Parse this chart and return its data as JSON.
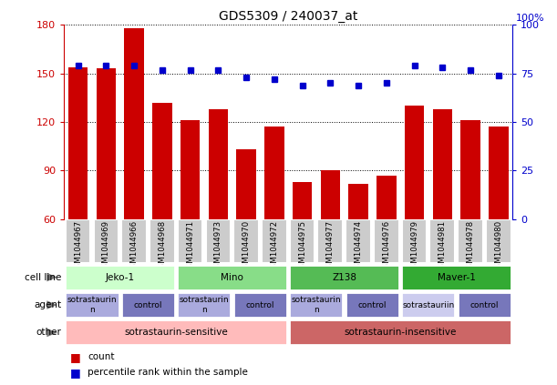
{
  "title": "GDS5309 / 240037_at",
  "samples": [
    "GSM1044967",
    "GSM1044969",
    "GSM1044966",
    "GSM1044968",
    "GSM1044971",
    "GSM1044973",
    "GSM1044970",
    "GSM1044972",
    "GSM1044975",
    "GSM1044977",
    "GSM1044974",
    "GSM1044976",
    "GSM1044979",
    "GSM1044981",
    "GSM1044978",
    "GSM1044980"
  ],
  "count_values": [
    154,
    153,
    178,
    132,
    121,
    128,
    103,
    117,
    83,
    90,
    82,
    87,
    130,
    128,
    121,
    117
  ],
  "percentile_values": [
    79,
    79,
    79,
    77,
    77,
    77,
    73,
    72,
    69,
    70,
    69,
    70,
    79,
    78,
    77,
    74
  ],
  "ylim_left": [
    60,
    180
  ],
  "ylim_right": [
    0,
    100
  ],
  "yticks_left": [
    60,
    90,
    120,
    150,
    180
  ],
  "yticks_right": [
    0,
    25,
    50,
    75,
    100
  ],
  "bar_color": "#cc0000",
  "dot_color": "#0000cc",
  "cell_line_groups": [
    {
      "label": "Jeko-1",
      "start": 0,
      "end": 3,
      "color": "#ccffcc"
    },
    {
      "label": "Mino",
      "start": 4,
      "end": 7,
      "color": "#88dd88"
    },
    {
      "label": "Z138",
      "start": 8,
      "end": 11,
      "color": "#55bb55"
    },
    {
      "label": "Maver-1",
      "start": 12,
      "end": 15,
      "color": "#33aa33"
    }
  ],
  "agent_groups": [
    {
      "label": "sotrastaurin\nn",
      "start": 0,
      "end": 1,
      "color": "#aaaadd"
    },
    {
      "label": "control",
      "start": 2,
      "end": 3,
      "color": "#7777bb"
    },
    {
      "label": "sotrastaurin\nn",
      "start": 4,
      "end": 5,
      "color": "#aaaadd"
    },
    {
      "label": "control",
      "start": 6,
      "end": 7,
      "color": "#7777bb"
    },
    {
      "label": "sotrastaurin\nn",
      "start": 8,
      "end": 9,
      "color": "#aaaadd"
    },
    {
      "label": "control",
      "start": 10,
      "end": 11,
      "color": "#7777bb"
    },
    {
      "label": "sotrastauriin",
      "start": 12,
      "end": 13,
      "color": "#ccccee"
    },
    {
      "label": "control",
      "start": 14,
      "end": 15,
      "color": "#7777bb"
    }
  ],
  "other_groups": [
    {
      "label": "sotrastaurin-sensitive",
      "start": 0,
      "end": 7,
      "color": "#ffbbbb"
    },
    {
      "label": "sotrastaurin-insensitive",
      "start": 8,
      "end": 15,
      "color": "#cc6666"
    }
  ],
  "row_labels": [
    "cell line",
    "agent",
    "other"
  ],
  "axis_color_left": "#cc0000",
  "axis_color_right": "#0000cc",
  "xtick_bg": "#cccccc",
  "legend_items": [
    {
      "label": "count",
      "color": "#cc0000"
    },
    {
      "label": "percentile rank within the sample",
      "color": "#0000cc"
    }
  ]
}
